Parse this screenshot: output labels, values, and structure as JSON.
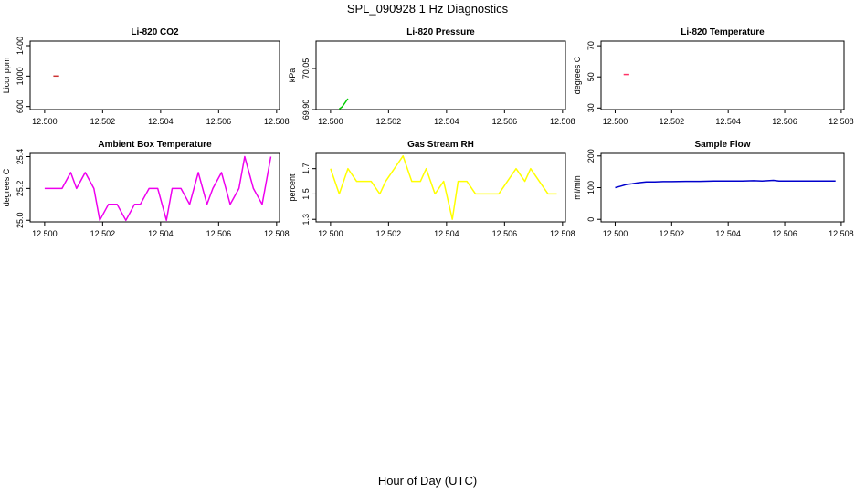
{
  "title": "SPL_090928  1 Hz Diagnostics",
  "xlabel": "Hour of Day (UTC)",
  "chart_data": [
    {
      "type": "line",
      "title": "Li-820 CO2",
      "ylabel": "Licor ppm",
      "xlim": [
        12.4995,
        12.5081
      ],
      "ylim": [
        560,
        1460
      ],
      "yticks": [
        600,
        1000,
        1400
      ],
      "ytick_labels": [
        "600",
        "1000",
        "1400"
      ],
      "xticks": [
        12.5,
        12.502,
        12.504,
        12.506,
        12.508
      ],
      "xtick_labels": [
        "12.500",
        "12.502",
        "12.504",
        "12.506",
        "12.508"
      ],
      "color": "#cc3333",
      "series": [
        {
          "name": "CO2",
          "x": [
            12.5003,
            12.5005
          ],
          "y": [
            1000,
            1000
          ]
        }
      ]
    },
    {
      "type": "line",
      "title": "Li-820 Pressure",
      "ylabel": "kPa",
      "xlim": [
        12.4995,
        12.5081
      ],
      "ylim": [
        69.9,
        70.15
      ],
      "yticks": [
        69.9,
        70.05
      ],
      "ytick_labels": [
        "69.90",
        "70.05"
      ],
      "xticks": [
        12.5,
        12.502,
        12.504,
        12.506,
        12.508
      ],
      "xtick_labels": [
        "12.500",
        "12.502",
        "12.504",
        "12.506",
        "12.508"
      ],
      "color": "#00cc00",
      "series": [
        {
          "name": "Pressure",
          "x": [
            12.5003,
            12.5004,
            12.5006
          ],
          "y": [
            69.902,
            69.91,
            69.94
          ]
        }
      ]
    },
    {
      "type": "line",
      "title": "Li-820 Temperature",
      "ylabel": "degrees C",
      "xlim": [
        12.4995,
        12.5081
      ],
      "ylim": [
        29,
        73
      ],
      "yticks": [
        30,
        50,
        70
      ],
      "ytick_labels": [
        "30",
        "50",
        "70"
      ],
      "xticks": [
        12.5,
        12.502,
        12.504,
        12.506,
        12.508
      ],
      "xtick_labels": [
        "12.500",
        "12.502",
        "12.504",
        "12.506",
        "12.508"
      ],
      "color": "#ff3366",
      "series": [
        {
          "name": "Temperature",
          "x": [
            12.5003,
            12.5005
          ],
          "y": [
            51.5,
            51.5
          ]
        }
      ]
    },
    {
      "type": "line",
      "title": "Ambient Box Temperature",
      "ylabel": "degrees C",
      "xlim": [
        12.4995,
        12.5081
      ],
      "ylim": [
        24.99,
        25.42
      ],
      "yticks": [
        25.0,
        25.2,
        25.4
      ],
      "ytick_labels": [
        "25.0",
        "25.2",
        "25.4"
      ],
      "xticks": [
        12.5,
        12.502,
        12.504,
        12.506,
        12.508
      ],
      "xtick_labels": [
        "12.500",
        "12.502",
        "12.504",
        "12.506",
        "12.508"
      ],
      "color": "#ee00ee",
      "series": [
        {
          "name": "Ambient Box Temperature",
          "x": [
            12.5,
            12.5003,
            12.5006,
            12.5009,
            12.5011,
            12.5014,
            12.5017,
            12.5019,
            12.5022,
            12.5025,
            12.5028,
            12.5031,
            12.5033,
            12.5036,
            12.5039,
            12.5042,
            12.5044,
            12.5047,
            12.505,
            12.5053,
            12.5056,
            12.5058,
            12.5061,
            12.5064,
            12.5067,
            12.5069,
            12.5072,
            12.5075,
            12.5078
          ],
          "y": [
            25.2,
            25.2,
            25.2,
            25.3,
            25.2,
            25.3,
            25.2,
            25.0,
            25.1,
            25.1,
            25.0,
            25.1,
            25.1,
            25.2,
            25.2,
            25.0,
            25.2,
            25.2,
            25.1,
            25.3,
            25.1,
            25.2,
            25.3,
            25.1,
            25.2,
            25.4,
            25.2,
            25.1,
            25.4
          ]
        }
      ]
    },
    {
      "type": "line",
      "title": "Gas Stream RH",
      "ylabel": "percent",
      "xlim": [
        12.4995,
        12.5081
      ],
      "ylim": [
        1.28,
        1.82
      ],
      "yticks": [
        1.3,
        1.5,
        1.7
      ],
      "ytick_labels": [
        "1.3",
        "1.5",
        "1.7"
      ],
      "xticks": [
        12.5,
        12.502,
        12.504,
        12.506,
        12.508
      ],
      "xtick_labels": [
        "12.500",
        "12.502",
        "12.504",
        "12.506",
        "12.508"
      ],
      "color": "#ffff00",
      "series": [
        {
          "name": "Gas Stream RH",
          "x": [
            12.5,
            12.5003,
            12.5006,
            12.5009,
            12.5011,
            12.5014,
            12.5017,
            12.5019,
            12.5022,
            12.5025,
            12.5028,
            12.5031,
            12.5033,
            12.5036,
            12.5039,
            12.5042,
            12.5044,
            12.5047,
            12.505,
            12.5053,
            12.5056,
            12.5058,
            12.5061,
            12.5064,
            12.5067,
            12.5069,
            12.5072,
            12.5075,
            12.5078
          ],
          "y": [
            1.7,
            1.5,
            1.7,
            1.6,
            1.6,
            1.6,
            1.5,
            1.6,
            1.7,
            1.8,
            1.6,
            1.6,
            1.7,
            1.5,
            1.6,
            1.3,
            1.6,
            1.6,
            1.5,
            1.5,
            1.5,
            1.5,
            1.6,
            1.7,
            1.6,
            1.7,
            1.6,
            1.5,
            1.5
          ]
        }
      ]
    },
    {
      "type": "line",
      "title": "Sample Flow",
      "ylabel": "ml/min",
      "xlim": [
        12.4995,
        12.5081
      ],
      "ylim": [
        -8,
        208
      ],
      "yticks": [
        0,
        100,
        200
      ],
      "ytick_labels": [
        "0",
        "100",
        "200"
      ],
      "xticks": [
        12.5,
        12.502,
        12.504,
        12.506,
        12.508
      ],
      "xtick_labels": [
        "12.500",
        "12.502",
        "12.504",
        "12.506",
        "12.508"
      ],
      "color": "#0000cc",
      "series": [
        {
          "name": "Sample Flow",
          "x": [
            12.5,
            12.5002,
            12.5004,
            12.5006,
            12.5008,
            12.5011,
            12.5014,
            12.5017,
            12.502,
            12.5025,
            12.503,
            12.5035,
            12.504,
            12.5045,
            12.5049,
            12.5052,
            12.5054,
            12.5056,
            12.5058,
            12.506,
            12.5065,
            12.507,
            12.5075,
            12.5078
          ],
          "y": [
            100,
            105,
            110,
            112,
            115,
            118,
            118,
            119,
            119,
            120,
            120,
            121,
            121,
            121,
            122,
            121,
            122,
            123,
            121,
            121,
            121,
            121,
            121,
            121
          ]
        }
      ]
    }
  ]
}
